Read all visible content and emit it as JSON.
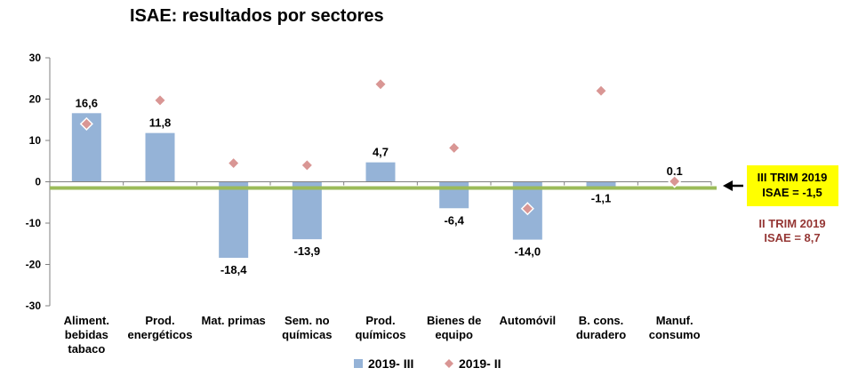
{
  "chart_data": {
    "type": "bar",
    "title": "ISAE: resultados por sectores",
    "xlabel": "",
    "ylabel": "",
    "ylim": [
      -30,
      30
    ],
    "yticks": [
      "30",
      "20",
      "10",
      "0",
      "-10",
      "-20",
      "-30"
    ],
    "grid": false,
    "legend_position": "bottom",
    "categories": [
      [
        "Aliment.",
        "bebidas",
        "tabaco"
      ],
      [
        "Prod.",
        "energéticos"
      ],
      [
        "Mat. primas"
      ],
      [
        "Sem. no",
        "químicas"
      ],
      [
        "Prod.",
        "químicos"
      ],
      [
        "Bienes de",
        "equipo"
      ],
      [
        "Automóvil"
      ],
      [
        "B. cons.",
        "duradero"
      ],
      [
        "Manuf.",
        "consumo"
      ]
    ],
    "series": [
      {
        "name": "2019- III",
        "kind": "bar",
        "color": "#95b3d7",
        "values": [
          16.6,
          11.8,
          -18.4,
          -13.9,
          4.7,
          -6.4,
          -14.0,
          -1.1,
          0.1
        ],
        "labels": [
          "16,6",
          "11,8",
          "-18,4",
          "-13,9",
          "4,7",
          "-6,4",
          "-14,0",
          "-1,1",
          "0,1"
        ]
      },
      {
        "name": "2019- II",
        "kind": "marker",
        "color": "#d99694",
        "values": [
          14.0,
          19.7,
          4.5,
          4.0,
          23.6,
          8.2,
          -6.5,
          22.0,
          0.1
        ]
      }
    ],
    "reference_line": {
      "value": -1.5,
      "color": "#9bbb59"
    },
    "annotations": {
      "current": {
        "lines": [
          "III TRIM 2019",
          "ISAE = -1,5"
        ],
        "bg": "#ffff00"
      },
      "previous": {
        "lines": [
          "II TRIM 2019",
          "ISAE = 8,7"
        ],
        "color": "#953735"
      }
    }
  }
}
